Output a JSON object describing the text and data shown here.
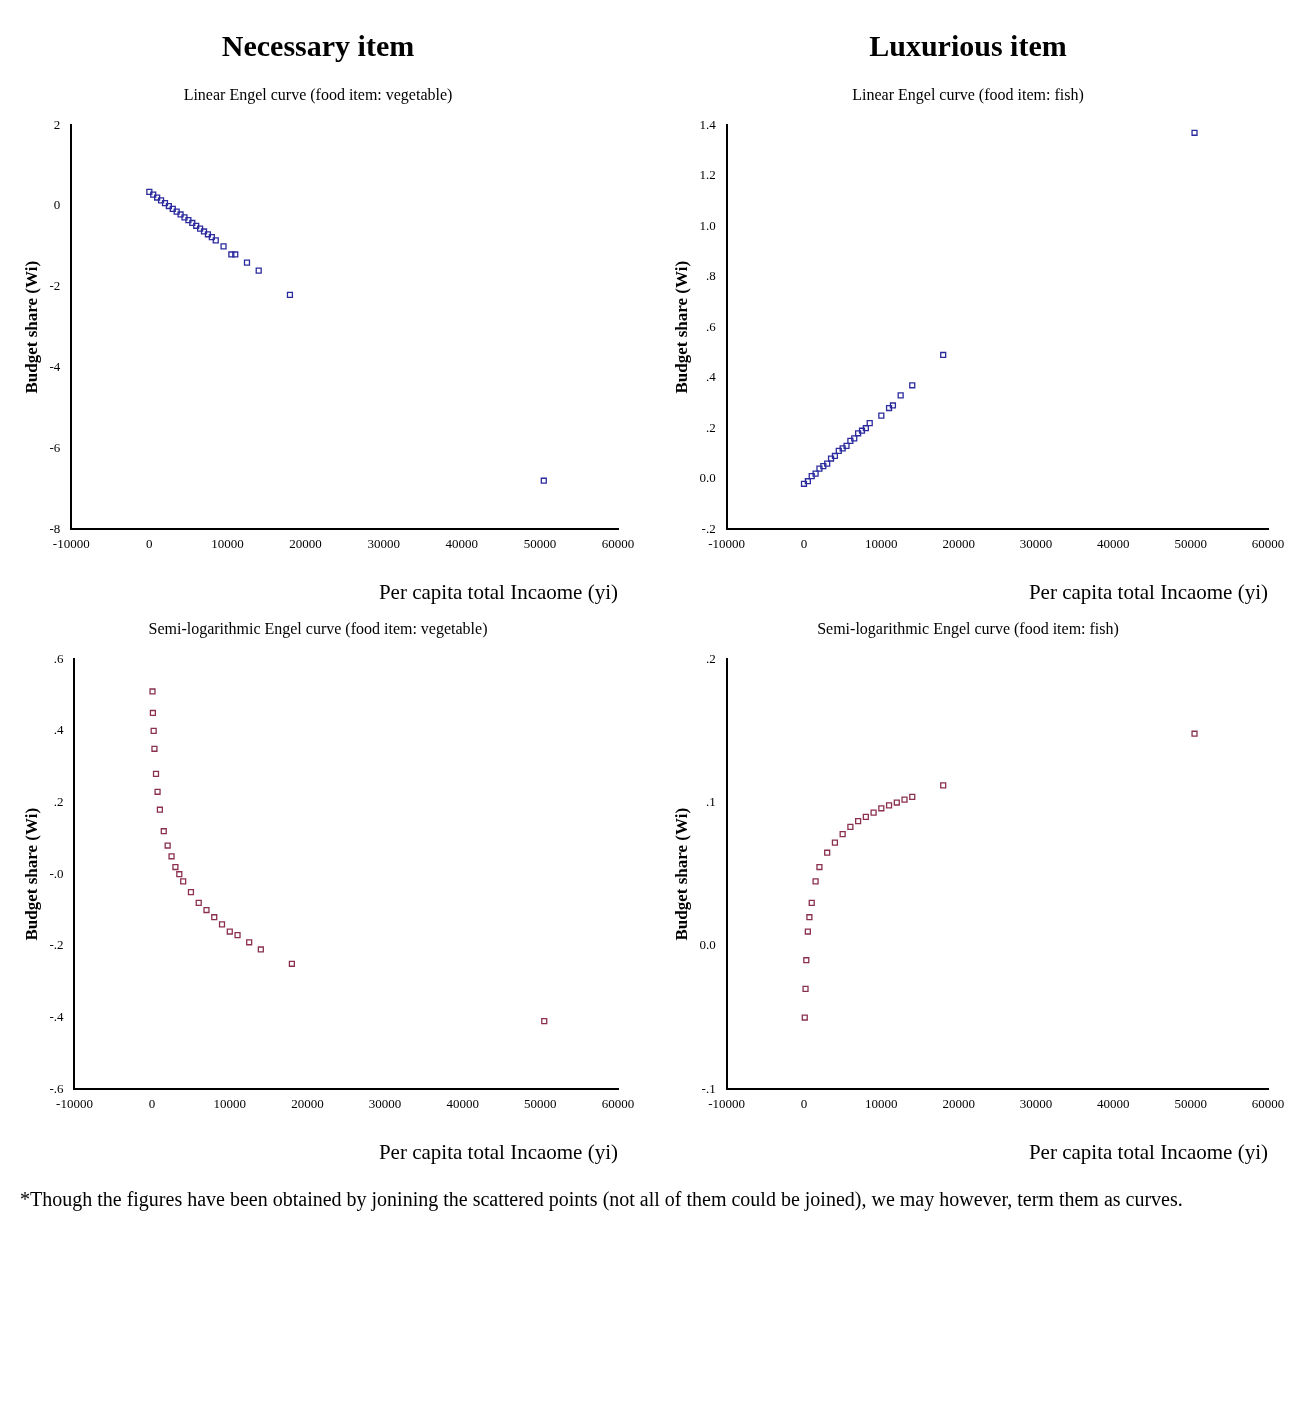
{
  "chart_data": [
    {
      "type": "scatter",
      "title": "Necessary item",
      "subtitle": "Linear Engel curve (food item: vegetable)",
      "xlabel": "Per capita total Incaome (yi)",
      "ylabel": "Budget share (Wi)",
      "marker": "square",
      "xlim": [
        -10000,
        60000
      ],
      "xticks": [
        -10000,
        0,
        10000,
        20000,
        30000,
        40000,
        50000,
        60000
      ],
      "ylim": [
        -8,
        2
      ],
      "yticks": [
        -8,
        -6,
        -4,
        -2,
        0,
        2
      ],
      "series": [
        {
          "color": "#2b2b9e",
          "x": [
            0,
            500,
            1000,
            1500,
            2000,
            2500,
            3000,
            3500,
            4000,
            4500,
            5000,
            5500,
            6000,
            6500,
            7000,
            7500,
            8000,
            8500,
            9500,
            10500,
            11000,
            12500,
            14000,
            18000,
            50500
          ],
          "values": [
            0.35,
            0.28,
            0.21,
            0.14,
            0.07,
            0.0,
            -0.07,
            -0.14,
            -0.21,
            -0.28,
            -0.35,
            -0.42,
            -0.49,
            -0.56,
            -0.63,
            -0.7,
            -0.77,
            -0.85,
            -1.0,
            -1.2,
            -1.2,
            -1.4,
            -1.6,
            -2.2,
            -6.8
          ]
        }
      ]
    },
    {
      "type": "scatter",
      "title": "Luxurious item",
      "subtitle": "Linear Engel curve (food item: fish)",
      "xlabel": "Per capita total Incaome (yi)",
      "ylabel": "Budget share (Wi)",
      "marker": "square",
      "xlim": [
        -10000,
        60000
      ],
      "xticks": [
        -10000,
        0,
        10000,
        20000,
        30000,
        40000,
        50000,
        60000
      ],
      "ylim": [
        -0.2,
        1.4
      ],
      "yticks": [
        {
          "value": -0.2,
          "label": "-.2"
        },
        {
          "value": 0,
          "label": "0.0"
        },
        {
          "value": 0.2,
          "label": ".2"
        },
        {
          "value": 0.4,
          "label": ".4"
        },
        {
          "value": 0.6,
          "label": ".6"
        },
        {
          "value": 0.8,
          "label": ".8"
        },
        {
          "value": 1.0,
          "label": "1.0"
        },
        {
          "value": 1.2,
          "label": "1.2"
        },
        {
          "value": 1.4,
          "label": "1.4"
        }
      ],
      "series": [
        {
          "color": "#2b2b9e",
          "x": [
            0,
            500,
            1000,
            1500,
            2000,
            2500,
            3000,
            3500,
            4000,
            4500,
            5000,
            5500,
            6000,
            6500,
            7000,
            7500,
            8000,
            8500,
            10000,
            11000,
            11500,
            12500,
            14000,
            18000,
            50500
          ],
          "values": [
            -0.02,
            -0.01,
            0.01,
            0.02,
            0.04,
            0.05,
            0.06,
            0.08,
            0.09,
            0.11,
            0.12,
            0.13,
            0.15,
            0.16,
            0.18,
            0.19,
            0.2,
            0.22,
            0.25,
            0.28,
            0.29,
            0.33,
            0.37,
            0.49,
            1.37
          ]
        }
      ]
    },
    {
      "type": "scatter",
      "subtitle": "Semi-logarithmic Engel curve (food item: vegetable)",
      "xlabel": "Per capita total Incaome (yi)",
      "ylabel": "Budget share (Wi)",
      "marker": "square",
      "xlim": [
        -10000,
        60000
      ],
      "xticks": [
        -10000,
        0,
        10000,
        20000,
        30000,
        40000,
        50000,
        60000
      ],
      "ylim": [
        -0.6,
        0.6
      ],
      "yticks": [
        {
          "value": -0.6,
          "label": "-.6"
        },
        {
          "value": -0.4,
          "label": "-.4"
        },
        {
          "value": -0.2,
          "label": "-.2"
        },
        {
          "value": 0,
          "label": "-.0"
        },
        {
          "value": 0.2,
          "label": ".2"
        },
        {
          "value": 0.4,
          "label": ".4"
        },
        {
          "value": 0.6,
          "label": ".6"
        }
      ],
      "series": [
        {
          "color": "#8a2f4f",
          "x": [
            50,
            100,
            200,
            300,
            500,
            700,
            1000,
            1500,
            2000,
            2500,
            3000,
            3500,
            4000,
            5000,
            6000,
            7000,
            8000,
            9000,
            10000,
            11000,
            12500,
            14000,
            18000,
            50500
          ],
          "values": [
            0.51,
            0.45,
            0.4,
            0.35,
            0.28,
            0.23,
            0.18,
            0.12,
            0.08,
            0.05,
            0.02,
            0.0,
            -0.02,
            -0.05,
            -0.08,
            -0.1,
            -0.12,
            -0.14,
            -0.16,
            -0.17,
            -0.19,
            -0.21,
            -0.25,
            -0.41
          ]
        }
      ]
    },
    {
      "type": "scatter",
      "subtitle": "Semi-logarithmic Engel curve (food item: fish)",
      "xlabel": "Per capita total Incaome (yi)",
      "ylabel": "Budget share (Wi)",
      "marker": "square",
      "xlim": [
        -10000,
        60000
      ],
      "xticks": [
        -10000,
        0,
        10000,
        20000,
        30000,
        40000,
        50000,
        60000
      ],
      "ylim": [
        -0.1,
        0.2
      ],
      "yticks": [
        {
          "value": -0.1,
          "label": "-.1"
        },
        {
          "value": 0,
          "label": "0.0"
        },
        {
          "value": 0.1,
          "label": ".1"
        },
        {
          "value": 0.2,
          "label": ".2"
        }
      ],
      "annotations": [
        "*Though the figures have been obtained by jonining the scattered points (not all of them could be joined), we may however, term them as curves."
      ],
      "series": [
        {
          "color": "#8a2f4f",
          "x": [
            100,
            200,
            300,
            500,
            700,
            1000,
            1500,
            2000,
            3000,
            4000,
            5000,
            6000,
            7000,
            8000,
            9000,
            10000,
            11000,
            12000,
            13000,
            14000,
            18000,
            50500
          ],
          "values": [
            -0.05,
            -0.03,
            -0.01,
            0.01,
            0.02,
            0.03,
            0.045,
            0.055,
            0.065,
            0.072,
            0.078,
            0.083,
            0.087,
            0.09,
            0.093,
            0.096,
            0.098,
            0.1,
            0.102,
            0.104,
            0.112,
            0.148
          ]
        }
      ]
    }
  ]
}
